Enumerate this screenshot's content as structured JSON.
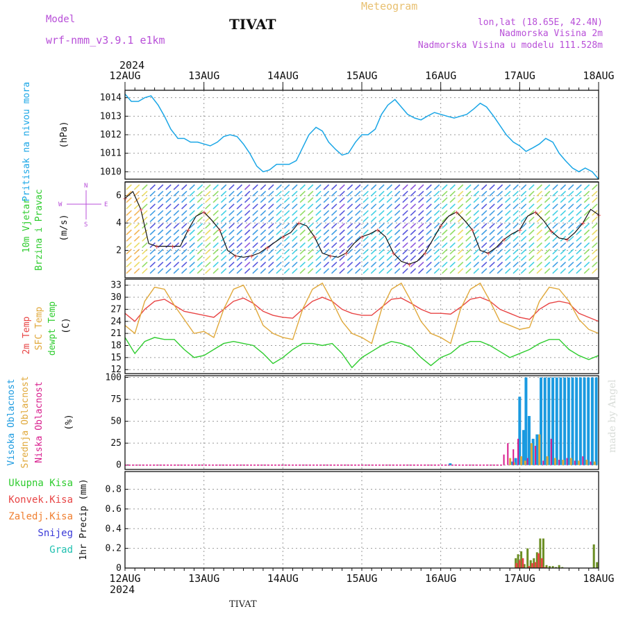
{
  "header": {
    "model_label": "Model",
    "model_name": "wrf-nmm_v3.9.1 e1km",
    "station": "TIVAT",
    "product": "Meteogram",
    "lonlat": "lon,lat (18.65E, 42.4N)",
    "elevation": "Nadmorska Visina 2m",
    "model_elevation": "Nadmorska Visina u modelu 111.528m",
    "footer_station": "TIVAT",
    "credit": "made by Angel"
  },
  "colors": {
    "pressure": "#1aa6e6",
    "t2m": "#e84545",
    "sfc": "#e0a83a",
    "dewpt": "#2ecc2e",
    "high_cloud": "#1a9ae0",
    "mid_cloud": "#e0a83a",
    "low_cloud": "#d81b8c",
    "total_precip": "#6b8e23",
    "conv_precip": "#e84545",
    "frz_precip": "#f07f30",
    "snow": "#3a3ad8",
    "graupel": "#20c0b0",
    "model_label": "#b84fd8",
    "product": "#e8c070",
    "title_purple": "#b84fd8"
  },
  "time_axis": {
    "year": "2024",
    "top_labels": [
      "12AUG",
      "13AUG",
      "14AUG",
      "15AUG",
      "16AUG",
      "17AUG",
      "18AUG"
    ],
    "bottom_labels": [
      "12AUG",
      "13AUG",
      "14AUG",
      "15AUG",
      "16AUG",
      "17AUG",
      "18AUG"
    ],
    "x_days": [
      0,
      1,
      2,
      3,
      4,
      5,
      6
    ]
  },
  "chart_data": [
    {
      "type": "line",
      "panel": "pressure",
      "ylabel": "Pritisak na nivou mora",
      "unit": "(hPa)",
      "ylim": [
        1009.6,
        1014.4
      ],
      "yticks": [
        1010,
        1011,
        1012,
        1013,
        1014
      ],
      "grid": true,
      "series": [
        {
          "x": [
            0,
            0.08,
            0.17,
            0.25,
            0.33,
            0.42,
            0.5,
            0.58,
            0.67,
            0.75,
            0.83,
            0.92,
            1.0,
            1.08,
            1.17,
            1.25,
            1.33,
            1.42,
            1.5,
            1.58,
            1.67,
            1.75,
            1.83,
            1.92,
            2.0,
            2.08,
            2.17,
            2.25,
            2.33,
            2.42,
            2.5,
            2.58,
            2.67,
            2.75,
            2.83,
            2.92,
            3.0,
            3.08,
            3.17,
            3.25,
            3.33,
            3.42,
            3.5,
            3.58,
            3.67,
            3.75,
            3.83,
            3.92,
            4.0,
            4.08,
            4.17,
            4.25,
            4.33,
            4.42,
            4.5,
            4.58,
            4.67,
            4.75,
            4.83,
            4.92,
            5.0,
            5.08,
            5.17,
            5.25,
            5.33,
            5.42,
            5.5,
            5.58,
            5.67,
            5.75,
            5.83,
            5.92,
            6.0
          ],
          "values": [
            1014.2,
            1013.8,
            1013.8,
            1014.0,
            1014.1,
            1013.6,
            1013.0,
            1012.3,
            1011.8,
            1011.8,
            1011.6,
            1011.6,
            1011.5,
            1011.4,
            1011.6,
            1011.9,
            1012.0,
            1011.9,
            1011.5,
            1011.0,
            1010.3,
            1010.0,
            1010.1,
            1010.4,
            1010.4,
            1010.4,
            1010.6,
            1011.3,
            1012.0,
            1012.4,
            1012.2,
            1011.6,
            1011.2,
            1010.9,
            1011.0,
            1011.6,
            1012.0,
            1012.0,
            1012.3,
            1013.1,
            1013.6,
            1013.9,
            1013.5,
            1013.1,
            1012.9,
            1012.8,
            1013.0,
            1013.2,
            1013.1,
            1013.0,
            1012.9,
            1013.0,
            1013.1,
            1013.4,
            1013.7,
            1013.5,
            1013.0,
            1012.5,
            1012.0,
            1011.6,
            1011.4,
            1011.1,
            1011.3,
            1011.5,
            1011.8,
            1011.6,
            1011.0,
            1010.6,
            1010.2,
            1010.0,
            1010.2,
            1010.0,
            1009.6
          ]
        }
      ]
    },
    {
      "type": "line",
      "panel": "wind",
      "ylabel": "10m Vjetar Brzina i Pravac",
      "unit": "(m/s)",
      "compass": [
        "W",
        "E",
        "N",
        "S"
      ],
      "ylim": [
        0,
        7
      ],
      "yticks": [
        2,
        4,
        6
      ],
      "grid": true,
      "series": [
        {
          "name": "speed",
          "x": [
            0,
            0.1,
            0.2,
            0.3,
            0.4,
            0.5,
            0.6,
            0.7,
            0.8,
            0.9,
            1.0,
            1.1,
            1.2,
            1.3,
            1.4,
            1.5,
            1.6,
            1.7,
            1.8,
            1.9,
            2.0,
            2.1,
            2.2,
            2.3,
            2.4,
            2.5,
            2.6,
            2.7,
            2.8,
            2.9,
            3.0,
            3.1,
            3.2,
            3.3,
            3.4,
            3.5,
            3.6,
            3.7,
            3.8,
            3.9,
            4.0,
            4.1,
            4.2,
            4.3,
            4.4,
            4.5,
            4.6,
            4.7,
            4.8,
            4.9,
            5.0,
            5.1,
            5.2,
            5.3,
            5.4,
            5.5,
            5.6,
            5.7,
            5.8,
            5.9,
            6.0
          ],
          "values": [
            5.8,
            6.3,
            5.0,
            2.5,
            2.3,
            2.3,
            2.3,
            2.3,
            3.5,
            4.5,
            4.8,
            4.2,
            3.5,
            2.0,
            1.6,
            1.5,
            1.6,
            1.8,
            2.2,
            2.6,
            3.0,
            3.3,
            4.0,
            3.8,
            3.0,
            1.8,
            1.6,
            1.5,
            1.8,
            2.5,
            3.0,
            3.2,
            3.5,
            3.0,
            1.8,
            1.2,
            1.0,
            1.2,
            1.8,
            2.8,
            3.8,
            4.5,
            4.8,
            4.2,
            3.5,
            2.0,
            1.8,
            2.2,
            2.8,
            3.2,
            3.5,
            4.5,
            4.8,
            4.2,
            3.4,
            2.9,
            2.8,
            3.3,
            4.0,
            5.0,
            4.6
          ]
        }
      ]
    },
    {
      "type": "line",
      "panel": "temperature",
      "ylabel": "2m Temp / SFC Temp / dewpt Temp",
      "unit": "(C)",
      "ylim": [
        11,
        34.5
      ],
      "yticks": [
        12,
        15,
        18,
        21,
        24,
        27,
        30,
        33
      ],
      "grid": true,
      "series": [
        {
          "name": "2m Temp",
          "x": [
            0,
            0.125,
            0.25,
            0.375,
            0.5,
            0.625,
            0.75,
            0.875,
            1.0,
            1.125,
            1.25,
            1.375,
            1.5,
            1.625,
            1.75,
            1.875,
            2.0,
            2.125,
            2.25,
            2.375,
            2.5,
            2.625,
            2.75,
            2.875,
            3.0,
            3.125,
            3.25,
            3.375,
            3.5,
            3.625,
            3.75,
            3.875,
            4.0,
            4.125,
            4.25,
            4.375,
            4.5,
            4.625,
            4.75,
            4.875,
            5.0,
            5.125,
            5.25,
            5.375,
            5.5,
            5.625,
            5.75,
            5.875,
            6.0
          ],
          "values": [
            26,
            24,
            27,
            29,
            29.5,
            28,
            26.5,
            26,
            25.5,
            25,
            27,
            29,
            29.8,
            28.5,
            26.5,
            25.5,
            25,
            24.8,
            27,
            29,
            30,
            29,
            27,
            26,
            25.5,
            25.5,
            27.5,
            29.5,
            29.8,
            28.5,
            27,
            26,
            26,
            25.8,
            27.5,
            29.5,
            30,
            29,
            27,
            26,
            25,
            24.5,
            27,
            28.5,
            29,
            28.5,
            26,
            25,
            24
          ]
        },
        {
          "name": "SFC Temp",
          "x": [
            0,
            0.125,
            0.25,
            0.375,
            0.5,
            0.625,
            0.75,
            0.875,
            1.0,
            1.125,
            1.25,
            1.375,
            1.5,
            1.625,
            1.75,
            1.875,
            2.0,
            2.125,
            2.25,
            2.375,
            2.5,
            2.625,
            2.75,
            2.875,
            3.0,
            3.125,
            3.25,
            3.375,
            3.5,
            3.625,
            3.75,
            3.875,
            4.0,
            4.125,
            4.25,
            4.375,
            4.5,
            4.625,
            4.75,
            4.875,
            5.0,
            5.125,
            5.25,
            5.375,
            5.5,
            5.625,
            5.75,
            5.875,
            6.0
          ],
          "values": [
            23,
            21,
            29,
            32.5,
            32,
            28,
            24.5,
            21,
            21.5,
            20,
            27,
            32,
            33,
            28.5,
            23,
            21,
            20,
            19.5,
            27,
            32,
            33.5,
            29,
            24,
            21,
            20,
            18.5,
            27,
            32,
            33.5,
            29,
            24,
            21,
            20,
            18.5,
            27,
            32,
            33.5,
            29,
            24,
            23,
            22,
            22.5,
            29,
            32.5,
            32,
            29,
            24.5,
            22,
            21
          ]
        },
        {
          "name": "dewpt Temp",
          "x": [
            0,
            0.125,
            0.25,
            0.375,
            0.5,
            0.625,
            0.75,
            0.875,
            1.0,
            1.125,
            1.25,
            1.375,
            1.5,
            1.625,
            1.75,
            1.875,
            2.0,
            2.125,
            2.25,
            2.375,
            2.5,
            2.625,
            2.75,
            2.875,
            3.0,
            3.125,
            3.25,
            3.375,
            3.5,
            3.625,
            3.75,
            3.875,
            4.0,
            4.125,
            4.25,
            4.375,
            4.5,
            4.625,
            4.75,
            4.875,
            5.0,
            5.125,
            5.25,
            5.375,
            5.5,
            5.625,
            5.75,
            5.875,
            6.0
          ],
          "values": [
            20,
            16,
            19,
            20,
            19.5,
            19.5,
            17,
            15,
            15.5,
            17,
            18.5,
            19,
            18.5,
            18,
            16,
            13.5,
            15,
            17,
            18.5,
            18.5,
            18,
            18.5,
            16,
            12.5,
            15,
            16.5,
            18,
            19,
            18.5,
            17.5,
            15,
            13,
            15,
            16,
            18,
            19,
            19,
            18,
            16.5,
            15,
            16,
            17,
            18.5,
            19.5,
            19.5,
            17,
            15.5,
            14.5,
            15.5
          ]
        }
      ]
    },
    {
      "type": "bar",
      "panel": "clouds",
      "ylabel": "Visoka Oblacnost / Srednja Oblacnost / Niska Oblacnost",
      "unit": "(%)",
      "ylim": [
        -5,
        102
      ],
      "yticks": [
        0,
        25,
        50,
        75,
        100
      ],
      "grid": true,
      "series": [
        {
          "name": "Visoka Oblacnost",
          "x": [
            4.12,
            4.9,
            4.95,
            5.0,
            5.05,
            5.08,
            5.12,
            5.17,
            5.22,
            5.27,
            5.32,
            5.37,
            5.42,
            5.47,
            5.52,
            5.57,
            5.62,
            5.67,
            5.72,
            5.77,
            5.82,
            5.87,
            5.92,
            5.97
          ],
          "values": [
            2,
            4,
            8,
            78,
            40,
            100,
            56,
            30,
            35,
            100,
            100,
            100,
            100,
            100,
            100,
            100,
            100,
            100,
            100,
            100,
            100,
            100,
            100,
            100
          ]
        },
        {
          "name": "Srednja Oblacnost",
          "x": [
            4.88,
            4.93,
            5.02,
            5.07,
            5.15,
            5.25,
            5.35,
            5.45,
            5.55,
            5.65,
            5.75,
            5.85,
            5.95
          ],
          "values": [
            8,
            3,
            10,
            5,
            25,
            35,
            10,
            8,
            6,
            8,
            5,
            6,
            4
          ]
        },
        {
          "name": "Niska Oblacnost",
          "x": [
            4.8,
            4.85,
            4.92,
            4.98,
            5.1,
            5.2,
            5.3,
            5.4,
            5.5,
            5.6,
            5.7,
            5.8,
            5.9
          ],
          "values": [
            12,
            25,
            18,
            30,
            8,
            22,
            5,
            30,
            6,
            8,
            5,
            10,
            4
          ]
        }
      ]
    },
    {
      "type": "bar",
      "panel": "precip",
      "ylabel": "1hr Precip",
      "unit": "(mm)",
      "ylim": [
        0,
        0.98
      ],
      "yticks": [
        0,
        0.2,
        0.4,
        0.6,
        0.8
      ],
      "grid": true,
      "legend": [
        "Ukupna Kisa",
        "Konvek.Kisa",
        "Zaledj.Kisa",
        "Snijeg",
        "Grad"
      ],
      "series": [
        {
          "name": "Ukupna Kisa",
          "x": [
            4.95,
            4.98,
            5.02,
            5.06,
            5.1,
            5.14,
            5.18,
            5.22,
            5.26,
            5.3,
            5.34,
            5.38,
            5.42,
            5.46,
            5.5,
            5.54,
            5.94,
            5.98
          ],
          "values": [
            0.1,
            0.14,
            0.17,
            0.04,
            0.2,
            0.08,
            0.1,
            0.16,
            0.3,
            0.3,
            0.03,
            0.02,
            0.02,
            0.01,
            0.03,
            0.01,
            0.24,
            0.06
          ]
        },
        {
          "name": "Konvek.Kisa",
          "x": [
            4.96,
            5.0,
            5.04,
            5.12,
            5.16,
            5.2,
            5.24,
            5.28,
            5.32
          ],
          "values": [
            0.05,
            0.08,
            0.1,
            0.02,
            0.05,
            0.06,
            0.15,
            0.1,
            0.01
          ]
        }
      ]
    }
  ]
}
